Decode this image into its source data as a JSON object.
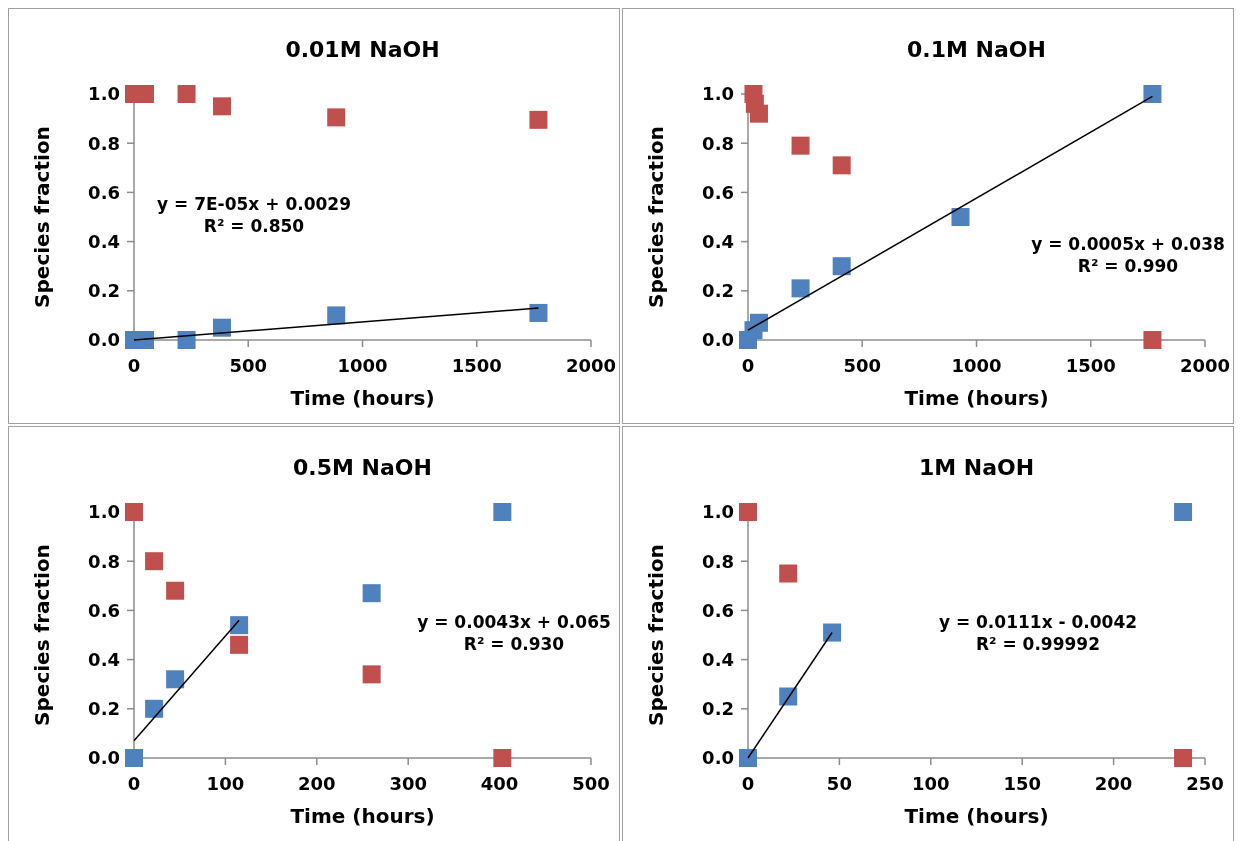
{
  "chart_data": [
    {
      "type": "scatter",
      "title": "0.01M NaOH",
      "xlabel": "Time (hours)",
      "ylabel": "Species fraction",
      "xlim": [
        0,
        2000
      ],
      "xticks": [
        0,
        500,
        1000,
        1500,
        2000
      ],
      "ylim": [
        0,
        1
      ],
      "yticks": [
        {
          "value": 0,
          "label": "0.0"
        },
        {
          "value": 0.2,
          "label": "0.2"
        },
        {
          "value": 0.4,
          "label": "0.4"
        },
        {
          "value": 0.6,
          "label": "0.6"
        },
        {
          "value": 0.8,
          "label": "0.8"
        },
        {
          "value": 1,
          "label": "1.0"
        }
      ],
      "series": [
        {
          "color": "#c0504d",
          "marker": "square",
          "x": [
            0,
            48,
            230,
            385,
            885,
            1770
          ],
          "values": [
            1.0,
            1.0,
            1.0,
            0.95,
            0.905,
            0.895
          ]
        },
        {
          "color": "#4f81bd",
          "marker": "square",
          "x": [
            0,
            48,
            230,
            385,
            885,
            1770
          ],
          "values": [
            0,
            0,
            0,
            0.05,
            0.1,
            0.11
          ]
        },
        {
          "type": "line",
          "marker": "none",
          "color": "#000000",
          "x": [
            0,
            1770
          ],
          "values": [
            0.0,
            0.13
          ]
        }
      ],
      "annotations": [
        "y = 7E-05x + 0.0029",
        "R² = 0.850"
      ]
    },
    {
      "type": "scatter",
      "title": "0.1M NaOH",
      "xlabel": "Time (hours)",
      "ylabel": "Species fraction",
      "xlim": [
        0,
        2000
      ],
      "xticks": [
        0,
        500,
        1000,
        1500,
        2000
      ],
      "ylim": [
        0,
        1
      ],
      "yticks": [
        {
          "value": 0,
          "label": "0.0"
        },
        {
          "value": 0.2,
          "label": "0.2"
        },
        {
          "value": 0.4,
          "label": "0.4"
        },
        {
          "value": 0.6,
          "label": "0.6"
        },
        {
          "value": 0.8,
          "label": "0.8"
        },
        {
          "value": 1,
          "label": "1.0"
        }
      ],
      "series": [
        {
          "color": "#c0504d",
          "marker": "square",
          "x": [
            24,
            30,
            48,
            230,
            410,
            1770
          ],
          "values": [
            1.0,
            0.96,
            0.92,
            0.79,
            0.71,
            0
          ]
        },
        {
          "color": "#4f81bd",
          "marker": "square",
          "x": [
            0,
            24,
            48,
            230,
            410,
            930,
            1770
          ],
          "values": [
            0,
            0.04,
            0.07,
            0.21,
            0.3,
            0.5,
            1.0
          ]
        },
        {
          "type": "line",
          "marker": "none",
          "color": "#000000",
          "x": [
            0,
            1770
          ],
          "values": [
            0.04,
            0.99
          ]
        }
      ],
      "annotations": [
        "y = 0.0005x + 0.038",
        "R² = 0.990"
      ]
    },
    {
      "type": "scatter",
      "title": "0.5M NaOH",
      "xlabel": "Time (hours)",
      "ylabel": "Species fraction",
      "xlim": [
        0,
        500
      ],
      "xticks": [
        0,
        100,
        200,
        300,
        400,
        500
      ],
      "ylim": [
        0,
        1
      ],
      "yticks": [
        {
          "value": 0,
          "label": "0.0"
        },
        {
          "value": 0.2,
          "label": "0.2"
        },
        {
          "value": 0.4,
          "label": "0.4"
        },
        {
          "value": 0.6,
          "label": "0.6"
        },
        {
          "value": 0.8,
          "label": "0.8"
        },
        {
          "value": 1,
          "label": "1.0"
        }
      ],
      "series": [
        {
          "color": "#c0504d",
          "marker": "square",
          "x": [
            0,
            22,
            45,
            115,
            260,
            403
          ],
          "values": [
            1.0,
            0.8,
            0.68,
            0.46,
            0.34,
            0
          ]
        },
        {
          "color": "#4f81bd",
          "marker": "square",
          "x": [
            0,
            22,
            45,
            115,
            260,
            403
          ],
          "values": [
            0,
            0.2,
            0.32,
            0.54,
            0.67,
            1.0
          ]
        },
        {
          "type": "line",
          "marker": "none",
          "color": "#000000",
          "x": [
            0,
            115
          ],
          "values": [
            0.07,
            0.56
          ]
        }
      ],
      "annotations": [
        "y = 0.0043x + 0.065",
        "R² = 0.930"
      ]
    },
    {
      "type": "scatter",
      "title": "1M NaOH",
      "xlabel": "Time (hours)",
      "ylabel": "Species fraction",
      "xlim": [
        0,
        250
      ],
      "xticks": [
        0,
        50,
        100,
        150,
        200,
        250
      ],
      "ylim": [
        0,
        1
      ],
      "yticks": [
        {
          "value": 0,
          "label": "0.0"
        },
        {
          "value": 0.2,
          "label": "0.2"
        },
        {
          "value": 0.4,
          "label": "0.4"
        },
        {
          "value": 0.6,
          "label": "0.6"
        },
        {
          "value": 0.8,
          "label": "0.8"
        },
        {
          "value": 1,
          "label": "1.0"
        }
      ],
      "series": [
        {
          "color": "#c0504d",
          "marker": "square",
          "x": [
            0,
            22,
            238
          ],
          "values": [
            1.0,
            0.75,
            0
          ]
        },
        {
          "color": "#4f81bd",
          "marker": "square",
          "x": [
            0,
            22,
            46,
            238
          ],
          "values": [
            0,
            0.25,
            0.51,
            1.0
          ]
        },
        {
          "type": "line",
          "marker": "none",
          "color": "#000000",
          "x": [
            0,
            46
          ],
          "values": [
            0.0,
            0.51
          ]
        }
      ],
      "annotations": [
        "y = 0.0111x - 0.0042",
        "R² = 0.99992"
      ]
    }
  ]
}
